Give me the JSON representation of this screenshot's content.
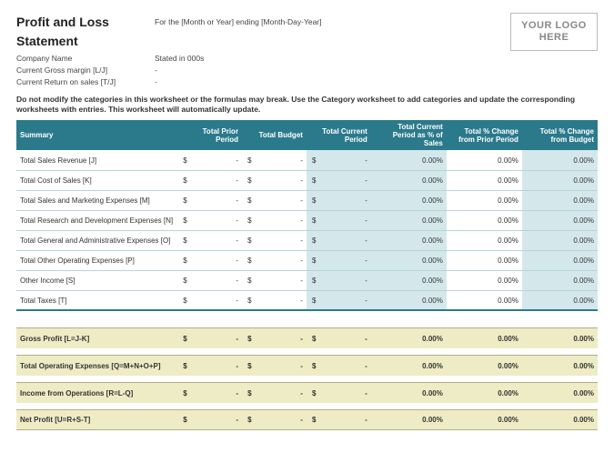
{
  "header": {
    "title": "Profit and Loss Statement",
    "meta": [
      {
        "label": "Company Name",
        "value": "Stated in 000s"
      },
      {
        "label": "Current Gross margin  [L/J]",
        "value": "-"
      },
      {
        "label": "Current Return on sales  [T/J]",
        "value": "-"
      }
    ],
    "period_line": "For the [Month or Year] ending [Month-Day-Year]",
    "logo_text": "YOUR LOGO HERE"
  },
  "note": "Do not modify the categories in this worksheet or the formulas may break. Use the Category worksheet to add categories and update the corresponding worksheets with entries. This worksheet will automatically update.",
  "columns": {
    "summary": "Summary",
    "prior": "Total Prior Period",
    "budget": "Total Budget",
    "current": "Total Current Period",
    "pct_sales": "Total Current Period as % of Sales",
    "pct_prior": "Total % Change from Prior Period",
    "pct_budget": "Total % Change from Budget"
  },
  "rows": [
    {
      "label": "Total Sales Revenue  [J]",
      "prior": "-",
      "budget": "-",
      "current": "-",
      "pct_sales": "0.00%",
      "pct_prior": "0.00%",
      "pct_budget": "0.00%"
    },
    {
      "label": "Total Cost of Sales  [K]",
      "prior": "-",
      "budget": "-",
      "current": "-",
      "pct_sales": "0.00%",
      "pct_prior": "0.00%",
      "pct_budget": "0.00%"
    },
    {
      "label": "Total Sales and Marketing Expenses  [M]",
      "prior": "-",
      "budget": "-",
      "current": "-",
      "pct_sales": "0.00%",
      "pct_prior": "0.00%",
      "pct_budget": "0.00%"
    },
    {
      "label": "Total Research and Development Expenses  [N]",
      "prior": "-",
      "budget": "-",
      "current": "-",
      "pct_sales": "0.00%",
      "pct_prior": "0.00%",
      "pct_budget": "0.00%"
    },
    {
      "label": "Total General and Administrative Expenses  [O]",
      "prior": "-",
      "budget": "-",
      "current": "-",
      "pct_sales": "0.00%",
      "pct_prior": "0.00%",
      "pct_budget": "0.00%"
    },
    {
      "label": "Total Other Operating Expenses [P]",
      "prior": "-",
      "budget": "-",
      "current": "-",
      "pct_sales": "0.00%",
      "pct_prior": "0.00%",
      "pct_budget": "0.00%"
    },
    {
      "label": "Other Income  [S]",
      "prior": "-",
      "budget": "-",
      "current": "-",
      "pct_sales": "0.00%",
      "pct_prior": "0.00%",
      "pct_budget": "0.00%"
    },
    {
      "label": "Total Taxes  [T]",
      "prior": "-",
      "budget": "-",
      "current": "-",
      "pct_sales": "0.00%",
      "pct_prior": "0.00%",
      "pct_budget": "0.00%"
    }
  ],
  "derived": [
    {
      "label": "Gross Profit  [L=J-K]",
      "prior": "-",
      "budget": "-",
      "current": "-",
      "pct_sales": "0.00%",
      "pct_prior": "0.00%",
      "pct_budget": "0.00%"
    },
    {
      "label": "Total Operating Expenses  [Q=M+N+O+P]",
      "prior": "-",
      "budget": "-",
      "current": "-",
      "pct_sales": "0.00%",
      "pct_prior": "0.00%",
      "pct_budget": "0.00%"
    },
    {
      "label": "Income from Operations  [R=L-Q]",
      "prior": "-",
      "budget": "-",
      "current": "-",
      "pct_sales": "0.00%",
      "pct_prior": "0.00%",
      "pct_budget": "0.00%"
    },
    {
      "label": "Net Profit  [U=R+S-T]",
      "prior": "-",
      "budget": "-",
      "current": "-",
      "pct_sales": "0.00%",
      "pct_prior": "0.00%",
      "pct_budget": "0.00%"
    }
  ],
  "currency": "$",
  "colors": {
    "header_bg": "#2b7a8c",
    "shade_bg": "#d4e8ec",
    "derived_bg": "#eeecc5",
    "border": "#b8d4d8"
  }
}
